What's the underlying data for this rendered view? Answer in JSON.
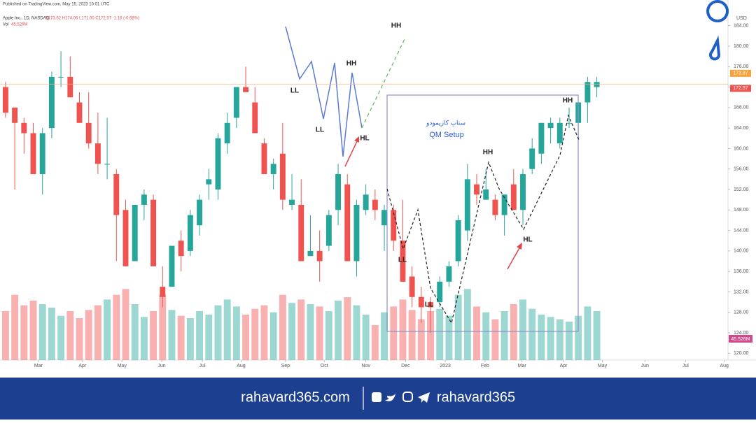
{
  "chart_data": {
    "type": "candlestick",
    "published": "Published on TradingView.com, May 15, 2023 10:01 UTC",
    "title": "Apple Inc., 1D, NASDAQ",
    "legend_ohlc": "O173.62 H174.06 L171.00 C172.57 -1.18 (-0.68%)",
    "volume_label": "Vol",
    "volume_last": "45.526M",
    "currency": "USD",
    "open": [
      172,
      168,
      165,
      163,
      155,
      164,
      174,
      174,
      169,
      165,
      161,
      157,
      155,
      148,
      138,
      149,
      150,
      133,
      133,
      142,
      140,
      145,
      153,
      152,
      161,
      166,
      172,
      169,
      161,
      155,
      159,
      149,
      149,
      139,
      140,
      141,
      148,
      153,
      138,
      148,
      150,
      145,
      148,
      142,
      135,
      131,
      130,
      130,
      134,
      138,
      144,
      153,
      150,
      150,
      147,
      153,
      148,
      156,
      159,
      164,
      161,
      165,
      165,
      169,
      172
    ],
    "high": [
      173,
      168,
      166,
      165,
      164,
      175,
      179,
      178,
      171,
      171,
      167,
      166,
      156,
      150,
      149,
      152,
      151,
      137,
      141,
      144,
      148,
      151,
      156,
      163,
      167,
      172,
      176,
      172,
      162,
      158,
      165,
      155,
      154,
      147,
      144,
      148,
      157,
      155,
      150,
      153,
      152,
      149,
      149,
      150,
      137,
      133,
      131,
      135,
      138,
      147,
      157,
      155,
      156,
      151,
      151,
      156,
      156,
      162,
      165,
      166,
      166,
      168,
      169,
      174,
      174
    ],
    "low": [
      166,
      152,
      159,
      155,
      151,
      162,
      172,
      170,
      165,
      160,
      155,
      154,
      138,
      137,
      138,
      146,
      137,
      129,
      133,
      136,
      139,
      143,
      150,
      150,
      159,
      164,
      171,
      163,
      155,
      152,
      148,
      148,
      138,
      139,
      134,
      140,
      145,
      138,
      135,
      147,
      146,
      140,
      140,
      134,
      129,
      126,
      124,
      129,
      133,
      137,
      142,
      149,
      150,
      146,
      143,
      148,
      145,
      155,
      157,
      161,
      160,
      164,
      162,
      165,
      170
    ],
    "close": [
      167,
      165,
      163,
      155,
      163,
      174,
      174,
      170,
      165,
      161,
      157,
      157,
      147,
      137,
      149,
      151,
      137,
      131,
      141,
      139,
      147,
      150,
      154,
      162,
      165,
      172,
      171,
      163,
      155,
      157,
      150,
      150,
      138,
      140,
      138,
      147,
      155,
      138,
      149,
      151,
      148,
      148,
      142,
      134,
      131,
      129,
      129,
      134,
      137,
      146,
      154,
      151,
      152,
      147,
      151,
      148,
      155,
      160,
      165,
      165,
      165,
      165,
      169,
      173,
      173
    ],
    "volume": [
      420,
      560,
      470,
      510,
      480,
      450,
      380,
      420,
      360,
      430,
      470,
      520,
      560,
      610,
      480,
      370,
      420,
      560,
      430,
      380,
      360,
      420,
      390,
      470,
      520,
      460,
      390,
      440,
      470,
      410,
      560,
      490,
      520,
      480,
      460,
      420,
      510,
      540,
      470,
      390,
      300,
      410,
      460,
      520,
      430,
      350,
      420,
      440,
      380,
      560,
      610,
      460,
      410,
      350,
      420,
      480,
      520,
      440,
      390,
      370,
      350,
      330,
      380,
      460,
      420
    ],
    "up_color": "#26a69a",
    "down_color": "#ef5350",
    "xlim": [
      -0.6,
      78.2
    ],
    "xticks": [
      {
        "value": 3.56,
        "label": "Mar"
      },
      {
        "value": 8.33,
        "label": "Apr"
      },
      {
        "value": 12.6,
        "label": "May"
      },
      {
        "value": 16.9,
        "label": "Jun"
      },
      {
        "value": 21.3,
        "label": "Jul"
      },
      {
        "value": 25.5,
        "label": "Aug"
      },
      {
        "value": 30.3,
        "label": "Sep"
      },
      {
        "value": 34.5,
        "label": "Oct"
      },
      {
        "value": 39,
        "label": "Nov"
      },
      {
        "value": 43.3,
        "label": "Dec"
      },
      {
        "value": 47.6,
        "label": "2023"
      },
      {
        "value": 51.9,
        "label": "Feb"
      },
      {
        "value": 55.9,
        "label": "Mar"
      },
      {
        "value": 60.4,
        "label": "Apr"
      },
      {
        "value": 64.6,
        "label": "May"
      },
      {
        "value": 69.2,
        "label": "Jun"
      },
      {
        "value": 73.6,
        "label": "Jul"
      },
      {
        "value": 77.8,
        "label": "Aug"
      }
    ],
    "ylim": [
      118,
      186
    ],
    "yticks": [
      {
        "value": 120,
        "label": "120.00"
      },
      {
        "value": 124,
        "label": "124.00"
      },
      {
        "value": 128,
        "label": "128.00"
      },
      {
        "value": 132,
        "label": "132.00"
      },
      {
        "value": 136,
        "label": "136.00"
      },
      {
        "value": 140,
        "label": "140.00"
      },
      {
        "value": 144,
        "label": "144.00"
      },
      {
        "value": 148,
        "label": "148.00"
      },
      {
        "value": 152,
        "label": "152.00"
      },
      {
        "value": 156,
        "label": "156.00"
      },
      {
        "value": 160,
        "label": "160.00"
      },
      {
        "value": 164,
        "label": "164.00"
      },
      {
        "value": 168,
        "label": "168.00"
      },
      {
        "value": 172,
        "label": "172.00"
      },
      {
        "value": 176,
        "label": "176.00"
      },
      {
        "value": 180,
        "label": "180.00"
      },
      {
        "value": 184,
        "label": "184.00"
      }
    ],
    "volume_lim": [
      0,
      1200
    ],
    "price_lines": [
      {
        "value": 173.87,
        "color": "#f7a23b"
      },
      {
        "value": 172.57,
        "color": "#ef5350"
      }
    ],
    "annotations": [
      "HH",
      "HH",
      "LL",
      "LL",
      "HL",
      "ستاپ کازیمودو",
      "QM Setup",
      "HH",
      "LL",
      "LL",
      "HL",
      "HH"
    ]
  },
  "footer": {
    "site": "rahavard365.com",
    "handle": "rahavard365"
  }
}
